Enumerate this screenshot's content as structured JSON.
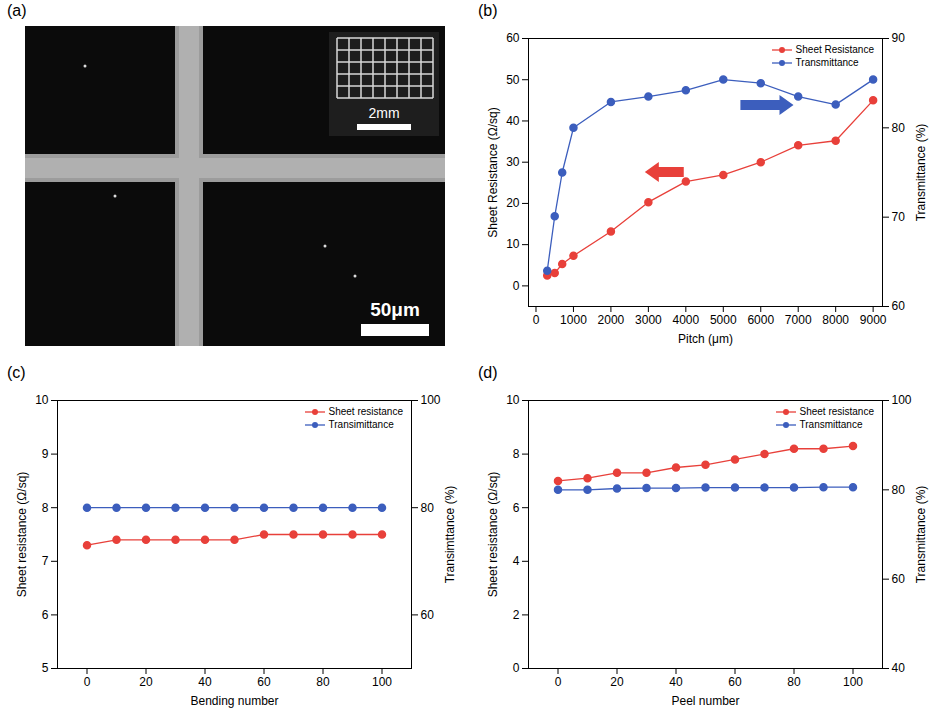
{
  "chart_data": [
    {
      "panel": "(a)",
      "type": "image",
      "scale_bar": "50μm",
      "inset_scale_bar": "2mm"
    },
    {
      "panel": "(b)",
      "type": "line",
      "x_label": "Pitch (μm)",
      "y_label": "Sheet Resistance (Ω/sq)",
      "y2_label": "Transmittance (%)",
      "x": [
        300,
        500,
        700,
        1000,
        2000,
        3000,
        4000,
        5000,
        6000,
        7000,
        8000,
        9000
      ],
      "xlim": [
        -200,
        9250
      ],
      "xticks": [
        0,
        1000,
        2000,
        3000,
        4000,
        5000,
        6000,
        7000,
        8000,
        9000
      ],
      "ylim": [
        -5,
        60
      ],
      "yticks": [
        0,
        10,
        20,
        30,
        40,
        50,
        60
      ],
      "y2lim": [
        60,
        90
      ],
      "y2ticks": [
        60,
        70,
        80,
        90
      ],
      "legend": "top-right",
      "grid": false,
      "marker": "circle",
      "series": [
        {
          "name": "Sheet Resistance",
          "color": "#e8403a",
          "values": [
            2.5,
            3.1,
            5.3,
            7.3,
            13.2,
            20.3,
            25.3,
            26.9,
            30,
            34.1,
            35.2,
            45
          ]
        },
        {
          "name": "Transmittance",
          "color": "#3c5ebd",
          "axis": "y2",
          "values": [
            64,
            70.1,
            75,
            80,
            82.9,
            83.5,
            84.2,
            85.4,
            85,
            83.5,
            82.6,
            85.4
          ]
        }
      ]
    },
    {
      "panel": "(c)",
      "type": "line",
      "x_label": "Bending number",
      "y_label": "Sheet resistance (Ω/sq)",
      "y2_label": "Transimttance (%)",
      "x": [
        0,
        10,
        20,
        30,
        40,
        50,
        60,
        70,
        80,
        90,
        100
      ],
      "xlim": [
        -10,
        110
      ],
      "xticks": [
        0,
        20,
        40,
        60,
        80,
        100
      ],
      "ylim": [
        5,
        10
      ],
      "yticks": [
        5,
        6,
        7,
        8,
        9,
        10
      ],
      "y2lim": [
        50,
        100
      ],
      "y2ticks": [
        60,
        80,
        100
      ],
      "legend": "top-right",
      "grid": false,
      "marker": "circle",
      "series": [
        {
          "name": "Sheet resistance",
          "color": "#e8403a",
          "values": [
            7.3,
            7.4,
            7.4,
            7.4,
            7.4,
            7.4,
            7.5,
            7.5,
            7.5,
            7.5,
            7.5
          ]
        },
        {
          "name": "Transimittance",
          "color": "#3c5ebd",
          "axis": "y2",
          "values": [
            80,
            80,
            80,
            80,
            80,
            80,
            80,
            80,
            80,
            80,
            80
          ]
        }
      ]
    },
    {
      "panel": "(d)",
      "type": "line",
      "x_label": "Peel number",
      "y_label": "Sheet resistance (Ω/sq)",
      "y2_label": "Transmittance (%)",
      "x": [
        0,
        10,
        20,
        30,
        40,
        50,
        60,
        70,
        80,
        90,
        100
      ],
      "xlim": [
        -10,
        110
      ],
      "xticks": [
        0,
        20,
        40,
        60,
        80,
        100
      ],
      "ylim": [
        0,
        10
      ],
      "yticks": [
        0,
        2,
        4,
        6,
        8,
        10
      ],
      "y2lim": [
        40,
        100
      ],
      "y2ticks": [
        40,
        60,
        80,
        100
      ],
      "legend": "top-right",
      "grid": false,
      "marker": "circle",
      "series": [
        {
          "name": "Sheet resistance",
          "color": "#e8403a",
          "values": [
            7.0,
            7.1,
            7.3,
            7.3,
            7.5,
            7.6,
            7.8,
            8.0,
            8.2,
            8.2,
            8.3
          ]
        },
        {
          "name": "Transmittance",
          "color": "#3c5ebd",
          "axis": "y2",
          "values": [
            80,
            80,
            80.3,
            80.4,
            80.4,
            80.5,
            80.5,
            80.5,
            80.5,
            80.6,
            80.6
          ]
        }
      ]
    }
  ]
}
